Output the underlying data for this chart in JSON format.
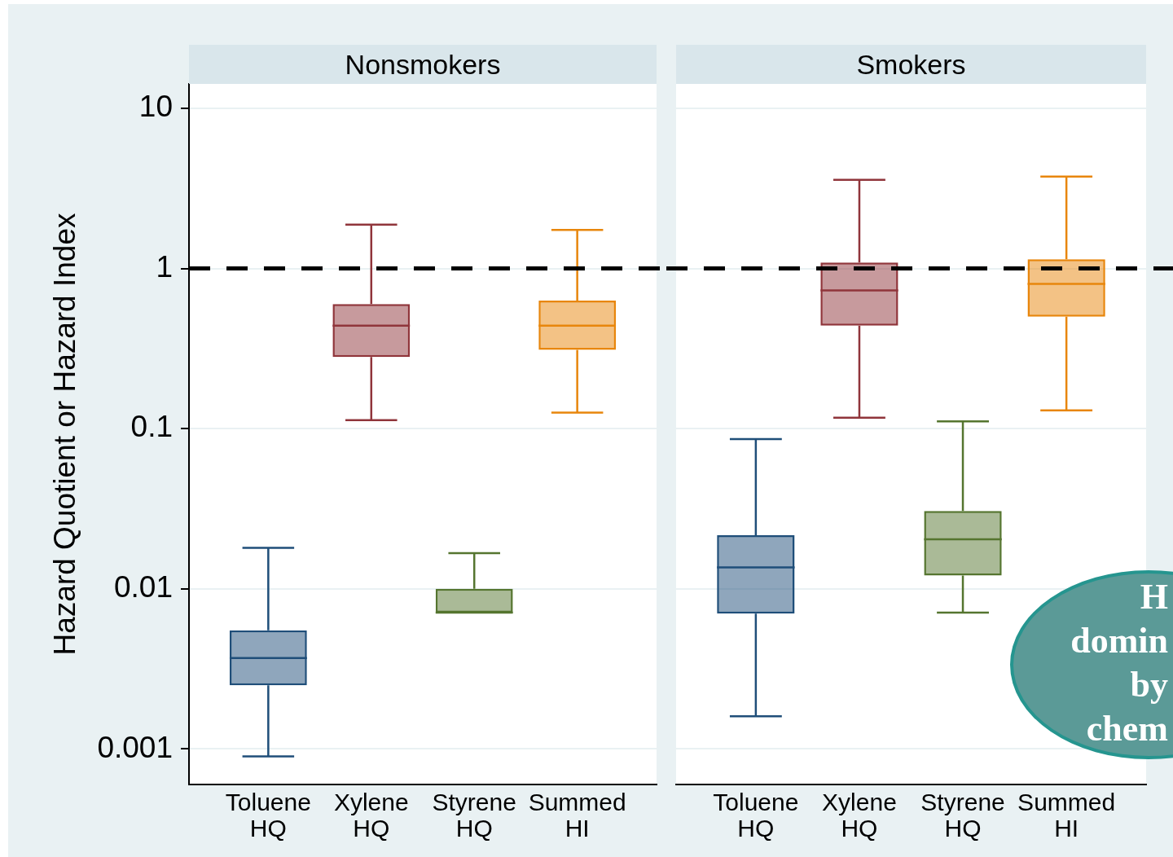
{
  "chart_data": [
    {
      "type": "box",
      "title": "Nonsmokers",
      "ylabel": "Hazard Quotient or Hazard Index",
      "categories": [
        "Toluene HQ",
        "Xylene HQ",
        "Styrene HQ",
        "Summed HI"
      ],
      "boxes": [
        {
          "low": 0.0009,
          "q1": 0.0025,
          "median": 0.0037,
          "q3": 0.0055,
          "high": 0.018
        },
        {
          "low": 0.113,
          "q1": 0.28,
          "median": 0.44,
          "q3": 0.6,
          "high": 1.88
        },
        {
          "low": 0.0071,
          "q1": 0.0071,
          "median": 0.0071,
          "q3": 0.01,
          "high": 0.0167
        },
        {
          "low": 0.126,
          "q1": 0.31,
          "median": 0.44,
          "q3": 0.63,
          "high": 1.74
        }
      ],
      "colors": [
        "#1f4e79",
        "#90353b",
        "#55752f",
        "#e8860c"
      ],
      "log": true,
      "ylim": [
        0.00062,
        14.2
      ],
      "yticks": [
        0.001,
        0.01,
        0.1,
        1,
        10
      ],
      "grid": "y",
      "ref_lines": [
        {
          "axis": "y",
          "value": 1,
          "color": "#000000",
          "line_style": "dashed"
        }
      ]
    },
    {
      "type": "box",
      "title": "Smokers",
      "categories": [
        "Toluene HQ",
        "Xylene HQ",
        "Styrene HQ",
        "Summed HI"
      ],
      "boxes": [
        {
          "low": 0.0016,
          "q1": 0.007,
          "median": 0.0136,
          "q3": 0.0216,
          "high": 0.086
        },
        {
          "low": 0.117,
          "q1": 0.44,
          "median": 0.73,
          "q3": 1.09,
          "high": 3.58
        },
        {
          "low": 0.0071,
          "q1": 0.0121,
          "median": 0.0204,
          "q3": 0.0306,
          "high": 0.111
        },
        {
          "low": 0.13,
          "q1": 0.5,
          "median": 0.8,
          "q3": 1.14,
          "high": 3.75
        }
      ],
      "colors": [
        "#1f4e79",
        "#90353b",
        "#55752f",
        "#e8860c"
      ],
      "log": true,
      "ylim": [
        0.00062,
        14.2
      ],
      "yticks": [
        0.001,
        0.01,
        0.1,
        1,
        10
      ],
      "grid": "y",
      "tick_labels": "x",
      "ref_lines": [
        {
          "axis": "y",
          "value": 1,
          "color": "#000000",
          "line_style": "dashed"
        }
      ],
      "annotations": [
        "H domin by chem"
      ]
    }
  ]
}
